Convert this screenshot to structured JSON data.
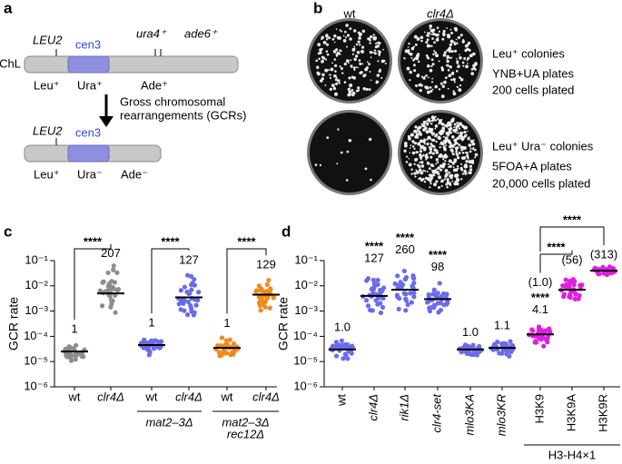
{
  "panels": {
    "a": "a",
    "b": "b",
    "c": "c",
    "d": "d"
  },
  "diagram": {
    "chromosome": "ChL",
    "top": {
      "leu2": "LEU2",
      "cen3": "cen3",
      "ura4": "ura4⁺",
      "ade6": "ade6⁺",
      "phenotypes": [
        "Leu⁺",
        "Ura⁺",
        "Ade⁺"
      ]
    },
    "arrow_text": [
      "Gross chromosomal",
      "rearrangements (GCRs)"
    ],
    "bottom": {
      "leu2": "LEU2",
      "cen3": "cen3",
      "phenotypes": [
        "Leu⁺",
        "Ura⁻",
        "Ade⁻"
      ]
    }
  },
  "plates": {
    "columns": [
      "wt",
      "clr4Δ"
    ],
    "rows": [
      [
        "Leu⁺ colonies",
        "YNB+UA plates",
        "200 cells plated"
      ],
      [
        "Leu⁺ Ura⁻ colonies",
        "5FOA+A plates",
        "20,000 cells plated"
      ]
    ]
  },
  "chart_data": [
    {
      "type": "dot",
      "ylabel": "GCR rate",
      "log_scale": true,
      "ylim": [
        1e-06,
        0.1
      ],
      "yticks": [
        {
          "value": 1e-06,
          "label": "10⁻⁶"
        },
        {
          "value": 1e-05,
          "label": "10⁻⁵"
        },
        {
          "value": 0.0001,
          "label": "10⁻⁴"
        },
        {
          "value": 0.001,
          "label": "10⁻³"
        },
        {
          "value": 0.01,
          "label": "10⁻²"
        },
        {
          "value": 0.1,
          "label": "10⁻¹"
        }
      ],
      "categories": [
        "wt",
        "clr4Δ",
        "wt",
        "clr4Δ",
        "wt",
        "clr4Δ"
      ],
      "colors": [
        "#8c8c8c",
        "#8c8c8c",
        "#6b6bea",
        "#6b6bea",
        "#f28a1e",
        "#f28a1e"
      ],
      "values": [
        2.5e-05,
        0.005,
        4.5e-05,
        0.0035,
        3.5e-05,
        0.0045
      ],
      "fold_labels": [
        "1",
        "207",
        "1",
        "127",
        "1",
        "129"
      ],
      "comparisons": [
        "****",
        "****",
        "****"
      ],
      "groups": [
        [
          "mat2–3Δ"
        ],
        [
          "mat2–3Δ",
          "rec12Δ"
        ]
      ]
    },
    {
      "type": "dot",
      "ylabel": "GCR rate",
      "log_scale": true,
      "ylim": [
        1e-06,
        0.1
      ],
      "yticks": [
        {
          "value": 1e-06,
          "label": "10⁻⁶"
        },
        {
          "value": 1e-05,
          "label": "10⁻⁵"
        },
        {
          "value": 0.0001,
          "label": "10⁻⁴"
        },
        {
          "value": 0.001,
          "label": "10⁻³"
        },
        {
          "value": 0.01,
          "label": "10⁻²"
        },
        {
          "value": 0.1,
          "label": "10⁻¹"
        }
      ],
      "categories": [
        "wt",
        "clr4Δ",
        "rik1Δ",
        "clr4-set",
        "mlo3KA",
        "mlo3KR",
        "H3K9",
        "H3K9A",
        "H3K9R"
      ],
      "colors": [
        "#6b6bea",
        "#6b6bea",
        "#6b6bea",
        "#6b6bea",
        "#6b6bea",
        "#6b6bea",
        "#e01ee0",
        "#e01ee0",
        "#e01ee0"
      ],
      "values": [
        3e-05,
        0.004,
        0.007,
        0.003,
        3e-05,
        3.5e-05,
        0.00012,
        0.007,
        0.04
      ],
      "fold_labels": [
        "1.0",
        "127",
        "260",
        "98",
        "1.0",
        "1.1",
        "4.1",
        null,
        null
      ],
      "stars": [
        null,
        "****",
        "****",
        "****",
        null,
        null,
        "****",
        null,
        null
      ],
      "relative_labels": [
        null,
        null,
        null,
        null,
        null,
        null,
        "(1.0)",
        "(56)",
        "(313)"
      ],
      "comparisons": [
        "****",
        "****"
      ],
      "groups": [
        [
          "H3-H4×1"
        ]
      ]
    }
  ]
}
